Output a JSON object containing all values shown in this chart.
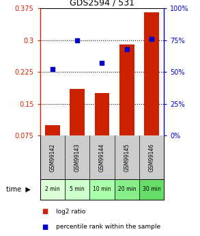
{
  "title": "GDS2594 / 531",
  "samples": [
    "GSM99142",
    "GSM99143",
    "GSM99144",
    "GSM99145",
    "GSM99146"
  ],
  "time_labels": [
    "2 min",
    "5 min",
    "10 min",
    "20 min",
    "30 min"
  ],
  "log2_ratio": [
    0.1,
    0.185,
    0.175,
    0.29,
    0.365
  ],
  "percentile_rank": [
    52,
    75,
    57,
    68,
    76
  ],
  "bar_color": "#cc2200",
  "dot_color": "#0000cc",
  "left_axis_color": "#cc2200",
  "right_axis_color": "#0000cc",
  "ylim_left": [
    0.075,
    0.375
  ],
  "ylim_right": [
    0,
    100
  ],
  "yticks_left": [
    0.075,
    0.15,
    0.225,
    0.3,
    0.375
  ],
  "yticks_right": [
    0,
    25,
    50,
    75,
    100
  ],
  "grid_yticks": [
    0.15,
    0.225,
    0.3
  ],
  "bg_plot": "#ffffff",
  "bg_gsm": "#cccccc",
  "time_colors": [
    "#ddffd8",
    "#ccffcc",
    "#aaffaa",
    "#88ee88",
    "#66dd66"
  ],
  "bar_width": 0.6,
  "figsize": [
    2.93,
    3.45
  ],
  "dpi": 100
}
